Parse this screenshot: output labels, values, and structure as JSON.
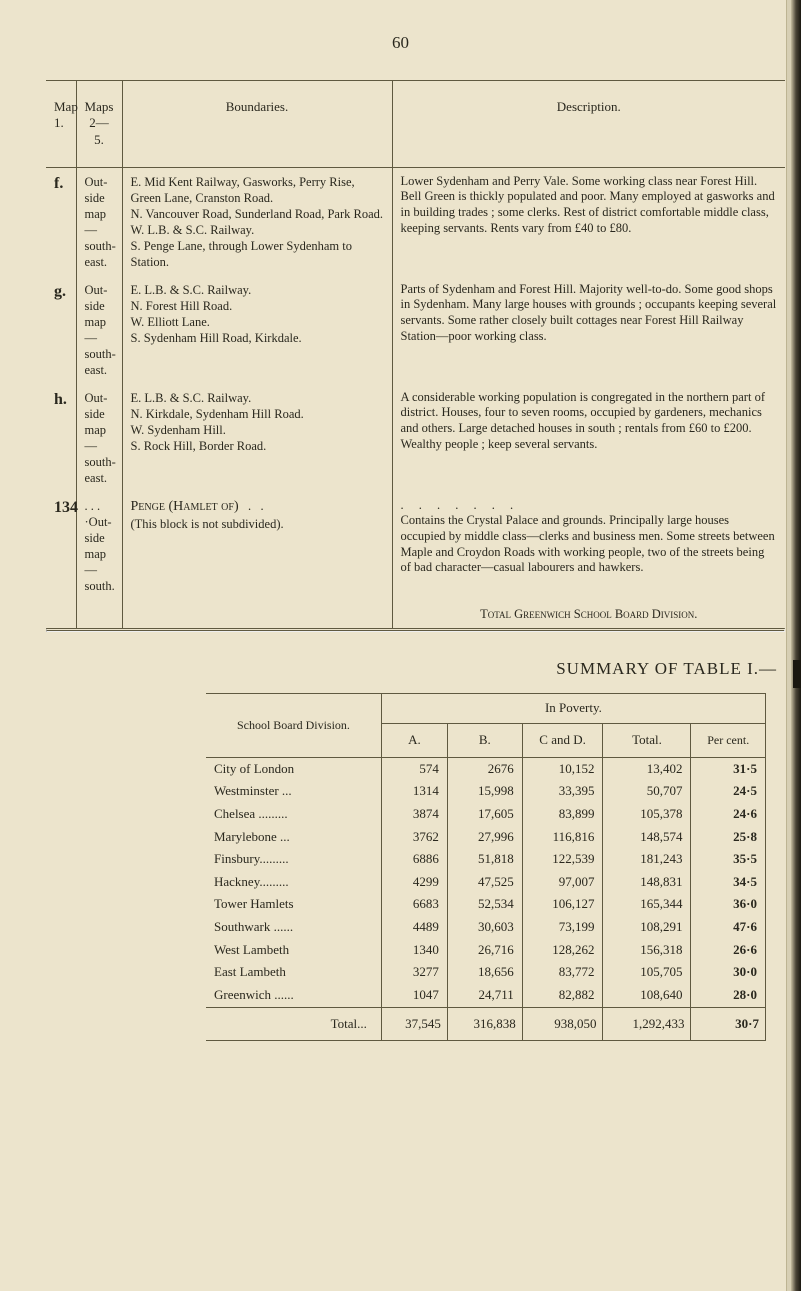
{
  "page_number": "60",
  "upper_table": {
    "headers": {
      "map": "Map\n1.",
      "maps": "Maps\n2—5.",
      "boundaries": "Boundaries.",
      "description": "Description."
    },
    "rows": [
      {
        "ref": "f.",
        "maps": "Out-side map— south-east.",
        "boundaries": "E. Mid Kent Railway, Gasworks, Perry Rise, Green Lane, Cranston Road.\nN. Vancouver Road, Sunderland Road, Park Road.\nW. L.B. & S.C. Railway.\nS. Penge Lane, through Lower Sydenham to Station.",
        "description": "Lower Sydenham and Perry Vale. Some working class near Forest Hill. Bell Green is thickly populated and poor. Many employed at gasworks and in building trades ; some clerks. Rest of district comfortable middle class, keeping servants. Rents vary from £40 to £80."
      },
      {
        "ref": "g.",
        "maps": "Out-side map— south-east.",
        "boundaries": "E. L.B. & S.C. Railway.\nN. Forest Hill Road.\nW. Elliott Lane.\nS. Sydenham Hill Road, Kirkdale.",
        "description": "Parts of Sydenham and Forest Hill. Majority well-to-do. Some good shops in Sydenham. Many large houses with grounds ; occupants keeping several servants. Some rather closely built cottages near Forest Hill Railway Station—poor working class."
      },
      {
        "ref": "h.",
        "maps": "Out-side map— south-east.",
        "boundaries": "E. L.B. & S.C. Railway.\nN. Kirkdale, Sydenham Hill Road.\nW. Sydenham Hill.\nS. Rock Hill, Border Road.",
        "description": "A considerable working population is congregated in the northern part of district. Houses, four to seven rooms, occupied by gardeners, mechanics and others. Large detached houses in south ; rentals from £60 to £200. Wealthy people ; keep several servants."
      },
      {
        "ref": "134",
        "maps": ". . .\n·Out-side map— south.",
        "boundaries_sc": "Penge (Hamlet of)",
        "boundaries_rest": "(This block is not subdivided).",
        "dots": ".        .        .        .        .        .        .",
        "description": "Contains the Crystal Palace and grounds. Principally large houses occupied by middle class—clerks and business men. Some streets between Maple and Croydon Roads with working people, two of the streets being of bad character—casual labourers and hawkers."
      }
    ],
    "total_line": "Total Greenwich School Board Division."
  },
  "summary_title": "SUMMARY OF TABLE I.—",
  "summary_table": {
    "corner": "School Board Division.",
    "group": "In Poverty.",
    "cols": {
      "a": "A.",
      "b": "B.",
      "cd": "C and D.",
      "total": "Total.",
      "per": "Per cent."
    },
    "rows": [
      {
        "name": "City of London",
        "a": "574",
        "b": "2676",
        "cd": "10,152",
        "t": "13,402",
        "p": "31·5"
      },
      {
        "name": "Westminster ...",
        "a": "1314",
        "b": "15,998",
        "cd": "33,395",
        "t": "50,707",
        "p": "24·5"
      },
      {
        "name": "Chelsea .........",
        "a": "3874",
        "b": "17,605",
        "cd": "83,899",
        "t": "105,378",
        "p": "24·6"
      },
      {
        "name": "Marylebone ...",
        "a": "3762",
        "b": "27,996",
        "cd": "116,816",
        "t": "148,574",
        "p": "25·8"
      },
      {
        "name": "Finsbury.........",
        "a": "6886",
        "b": "51,818",
        "cd": "122,539",
        "t": "181,243",
        "p": "35·5"
      },
      {
        "name": "Hackney.........",
        "a": "4299",
        "b": "47,525",
        "cd": "97,007",
        "t": "148,831",
        "p": "34·5"
      },
      {
        "name": "Tower Hamlets",
        "a": "6683",
        "b": "52,534",
        "cd": "106,127",
        "t": "165,344",
        "p": "36·0"
      },
      {
        "name": "Southwark ......",
        "a": "4489",
        "b": "30,603",
        "cd": "73,199",
        "t": "108,291",
        "p": "47·6"
      },
      {
        "name": "West Lambeth",
        "a": "1340",
        "b": "26,716",
        "cd": "128,262",
        "t": "156,318",
        "p": "26·6"
      },
      {
        "name": "East Lambeth",
        "a": "3277",
        "b": "18,656",
        "cd": "83,772",
        "t": "105,705",
        "p": "30·0"
      },
      {
        "name": "Greenwich ......",
        "a": "1047",
        "b": "24,711",
        "cd": "82,882",
        "t": "108,640",
        "p": "28·0"
      }
    ],
    "total": {
      "name": "Total...",
      "a": "37,545",
      "b": "316,838",
      "cd": "938,050",
      "t": "1,292,433",
      "p": "30·7"
    }
  }
}
